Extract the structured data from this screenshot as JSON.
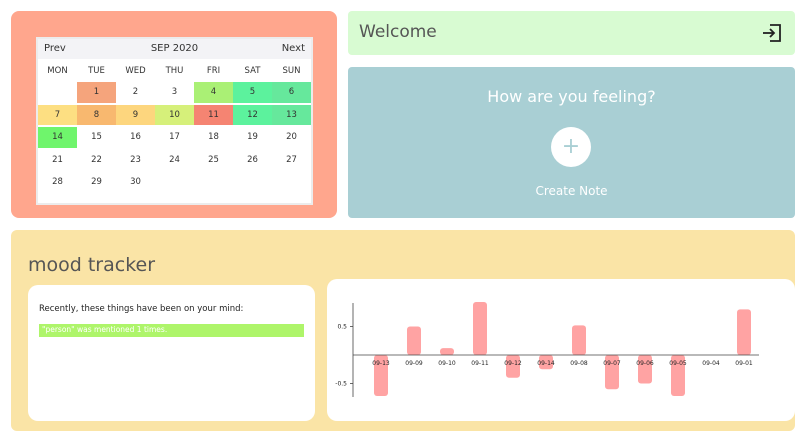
{
  "calendar": {
    "prev_label": "Prev",
    "title": "SEP 2020",
    "next_label": "Next",
    "weekdays": [
      "MON",
      "TUE",
      "WED",
      "THU",
      "FRI",
      "SAT",
      "SUN"
    ],
    "weeks": [
      [
        {
          "d": ""
        },
        {
          "d": "1",
          "c": "#f5a47c"
        },
        {
          "d": "2"
        },
        {
          "d": "3"
        },
        {
          "d": "4",
          "c": "#aaf075"
        },
        {
          "d": "5",
          "c": "#5cf29d"
        },
        {
          "d": "6",
          "c": "#66e89c"
        }
      ],
      [
        {
          "d": "7",
          "c": "#fddf82"
        },
        {
          "d": "8",
          "c": "#f8b86f"
        },
        {
          "d": "9",
          "c": "#fdd67e"
        },
        {
          "d": "10",
          "c": "#d6f07a"
        },
        {
          "d": "11",
          "c": "#f58472"
        },
        {
          "d": "12",
          "c": "#5cf29d"
        },
        {
          "d": "13",
          "c": "#66e89c"
        }
      ],
      [
        {
          "d": "14",
          "c": "#6ff56c"
        },
        {
          "d": "15"
        },
        {
          "d": "16"
        },
        {
          "d": "17"
        },
        {
          "d": "18"
        },
        {
          "d": "19"
        },
        {
          "d": "20"
        }
      ],
      [
        {
          "d": "21"
        },
        {
          "d": "22"
        },
        {
          "d": "23"
        },
        {
          "d": "24"
        },
        {
          "d": "25"
        },
        {
          "d": "26"
        },
        {
          "d": "27"
        }
      ],
      [
        {
          "d": "28"
        },
        {
          "d": "29"
        },
        {
          "d": "30"
        },
        {
          "d": ""
        },
        {
          "d": ""
        },
        {
          "d": ""
        },
        {
          "d": ""
        }
      ]
    ]
  },
  "welcome": {
    "title": "Welcome",
    "logout_icon": "logout-icon"
  },
  "feeling": {
    "title": "How are you feeling?",
    "button_symbol": "+",
    "button_label": "Create Note"
  },
  "mood": {
    "title": "mood tracker",
    "mind_text": "Recently, these things have been on your mind:",
    "mention": "\"person\" was mentioned 1 times.",
    "bar_color": "#ffa3a3",
    "mention_color": "#aef56a"
  },
  "chart_data": {
    "type": "bar",
    "categories": [
      "09-13",
      "09-09",
      "09-10",
      "09-11",
      "09-12",
      "09-14",
      "09-08",
      "09-07",
      "09-06",
      "09-05",
      "09-04",
      "09-01"
    ],
    "values": [
      -0.72,
      0.5,
      0.12,
      0.93,
      -0.4,
      -0.25,
      0.52,
      -0.6,
      -0.5,
      -0.72,
      0,
      0.8
    ],
    "yticks": [
      "0.5",
      "-0.5"
    ],
    "ylim": [
      -0.75,
      0.95
    ],
    "title": "",
    "xlabel": "",
    "ylabel": ""
  }
}
